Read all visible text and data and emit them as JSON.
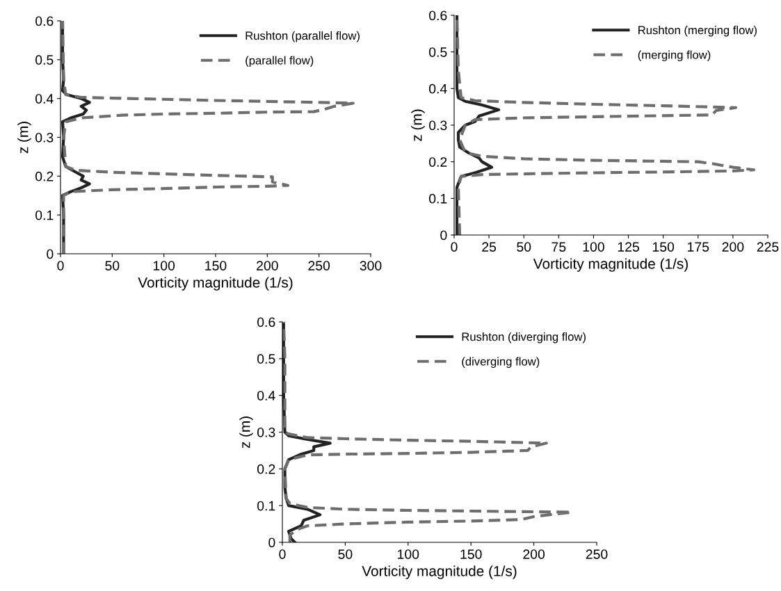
{
  "chart_data": [
    {
      "type": "line",
      "xlabel": "Vorticity magnitude (1/s)",
      "ylabel": "z (m)",
      "xlim": [
        0,
        300
      ],
      "xticks": [
        0,
        50,
        100,
        150,
        200,
        250,
        300
      ],
      "ylim": [
        0,
        0.6
      ],
      "yticks": [
        0,
        0.1,
        0.2,
        0.3,
        0.4,
        0.5,
        0.6
      ],
      "legend": "top right",
      "grid": false,
      "series": [
        {
          "name": "Rushton (parallel flow)",
          "color": "#222222",
          "line_style": "solid",
          "x": [
            3,
            3,
            2,
            10,
            20,
            28,
            20,
            22,
            15,
            5,
            2,
            3,
            2,
            10,
            22,
            25,
            20,
            28,
            20,
            6,
            2,
            3,
            2,
            2
          ],
          "values": [
            0,
            0.1,
            0.15,
            0.16,
            0.17,
            0.18,
            0.19,
            0.2,
            0.21,
            0.225,
            0.25,
            0.3,
            0.34,
            0.35,
            0.36,
            0.37,
            0.38,
            0.39,
            0.4,
            0.41,
            0.42,
            0.45,
            0.5,
            0.6
          ]
        },
        {
          "name": "(parallel flow)",
          "color": "#6e6e6e",
          "line_style": "dashed",
          "x": [
            3,
            3,
            3,
            10,
            50,
            100,
            150,
            200,
            220,
            205,
            205,
            150,
            100,
            50,
            15,
            5,
            3,
            5,
            20,
            60,
            100,
            150,
            200,
            245,
            255,
            265,
            283,
            250,
            150,
            100,
            50,
            20,
            5,
            3,
            2
          ],
          "values": [
            0,
            0.1,
            0.15,
            0.16,
            0.165,
            0.168,
            0.172,
            0.174,
            0.176,
            0.185,
            0.198,
            0.202,
            0.206,
            0.21,
            0.215,
            0.225,
            0.3,
            0.34,
            0.35,
            0.357,
            0.36,
            0.362,
            0.365,
            0.366,
            0.372,
            0.38,
            0.388,
            0.39,
            0.395,
            0.398,
            0.401,
            0.403,
            0.41,
            0.45,
            0.6
          ]
        }
      ]
    },
    {
      "type": "line",
      "xlabel": "Vorticity magnitude (1/s)",
      "ylabel": "z (m)",
      "xlim": [
        0,
        225
      ],
      "xticks": [
        0,
        25,
        50,
        75,
        100,
        125,
        150,
        175,
        200,
        225
      ],
      "ylim": [
        0,
        0.6
      ],
      "yticks": [
        0,
        0.1,
        0.2,
        0.3,
        0.4,
        0.5,
        0.6
      ],
      "legend": "top right",
      "grid": false,
      "series": [
        {
          "name": "Rushton (merging flow)",
          "color": "#222222",
          "line_style": "solid",
          "x": [
            2,
            2,
            5,
            15,
            27,
            20,
            18,
            10,
            4,
            3,
            3,
            8,
            15,
            18,
            32,
            20,
            8,
            3,
            2,
            2
          ],
          "values": [
            0,
            0.13,
            0.16,
            0.17,
            0.185,
            0.2,
            0.21,
            0.225,
            0.24,
            0.26,
            0.28,
            0.3,
            0.31,
            0.325,
            0.342,
            0.355,
            0.365,
            0.375,
            0.4,
            0.6
          ]
        },
        {
          "name": "(merging flow)",
          "color": "#6e6e6e",
          "line_style": "dashed",
          "x": [
            4,
            3,
            5,
            20,
            50,
            100,
            150,
            200,
            215,
            200,
            185,
            175,
            100,
            50,
            20,
            8,
            4,
            8,
            15,
            50,
            100,
            150,
            185,
            188,
            202,
            150,
            100,
            50,
            15,
            5,
            3,
            2
          ],
          "values": [
            0,
            0.13,
            0.16,
            0.165,
            0.167,
            0.17,
            0.172,
            0.175,
            0.178,
            0.185,
            0.195,
            0.2,
            0.204,
            0.208,
            0.215,
            0.225,
            0.26,
            0.3,
            0.315,
            0.32,
            0.323,
            0.326,
            0.328,
            0.34,
            0.348,
            0.353,
            0.357,
            0.362,
            0.367,
            0.375,
            0.45,
            0.6
          ]
        }
      ]
    },
    {
      "type": "line",
      "xlabel": "Vorticity magnitude (1/s)",
      "ylabel": "z (m)",
      "xlim": [
        0,
        250
      ],
      "xticks": [
        0,
        50,
        100,
        150,
        200,
        250
      ],
      "ylim": [
        0,
        0.6
      ],
      "yticks": [
        0,
        0.1,
        0.2,
        0.3,
        0.4,
        0.5,
        0.6
      ],
      "legend": "top right",
      "grid": false,
      "series": [
        {
          "name": "Rushton (diverging flow)",
          "color": "#222222",
          "line_style": "solid",
          "x": [
            10,
            7,
            5,
            15,
            17,
            30,
            20,
            5,
            3,
            2,
            2,
            5,
            15,
            25,
            25,
            38,
            20,
            5,
            2,
            1,
            1
          ],
          "values": [
            0,
            0.01,
            0.03,
            0.045,
            0.06,
            0.075,
            0.09,
            0.1,
            0.12,
            0.15,
            0.2,
            0.225,
            0.24,
            0.25,
            0.26,
            0.27,
            0.28,
            0.29,
            0.3,
            0.4,
            0.6
          ]
        },
        {
          "name": "(diverging flow)",
          "color": "#6e6e6e",
          "line_style": "dashed",
          "x": [
            6,
            6,
            12,
            20,
            50,
            100,
            150,
            190,
            200,
            230,
            180,
            100,
            50,
            20,
            6,
            3,
            2,
            5,
            20,
            50,
            100,
            150,
            195,
            198,
            210,
            150,
            100,
            50,
            20,
            5,
            2,
            2,
            1
          ],
          "values": [
            0,
            0.02,
            0.035,
            0.045,
            0.05,
            0.055,
            0.058,
            0.062,
            0.07,
            0.082,
            0.084,
            0.087,
            0.09,
            0.095,
            0.105,
            0.12,
            0.2,
            0.225,
            0.238,
            0.24,
            0.242,
            0.245,
            0.25,
            0.26,
            0.27,
            0.275,
            0.278,
            0.282,
            0.285,
            0.295,
            0.3,
            0.5,
            0.6
          ]
        }
      ]
    }
  ]
}
